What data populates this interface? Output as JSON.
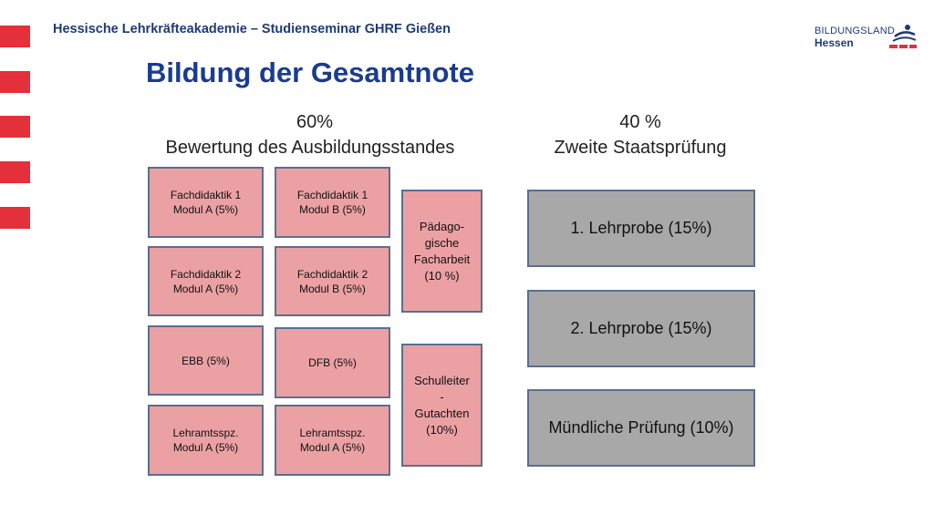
{
  "header": {
    "institution": "Hessische Lehrkräfteakademie – Studienseminar GHRF Gießen",
    "logo_line1": "BILDUNGSLAND",
    "logo_line2": "Hessen"
  },
  "title": "Bildung der Gesamtnote",
  "colors": {
    "accent_red": "#e3303a",
    "title_blue": "#1a3c8f",
    "box_pink": "#eba1a4",
    "box_gray": "#a8a8a8",
    "box_border": "#5a6f8f"
  },
  "left": {
    "percent": "60%",
    "label": "Bewertung des Ausbildungsstandes",
    "boxes": [
      "Fachdidaktik 1\nModul A (5%)",
      "Fachdidaktik 1\nModul B (5%)",
      "Fachdidaktik 2\nModul A (5%)",
      "Fachdidaktik 2\nModul B (5%)",
      "EBB  (5%)",
      "DFB (5%)",
      "Lehramtsspz.\nModul A (5%)",
      "Lehramtsspz.\nModul A (5%)"
    ],
    "tall_boxes": [
      "Pädago-\ngische\nFacharbeit\n(10 %)",
      "Schulleiter\n-\nGutachten\n(10%)"
    ]
  },
  "right": {
    "percent": "40 %",
    "label": "Zweite Staatsprüfung",
    "boxes": [
      "1. Lehrprobe (15%)",
      "2. Lehrprobe (15%)",
      "Mündliche Prüfung (10%)"
    ]
  }
}
